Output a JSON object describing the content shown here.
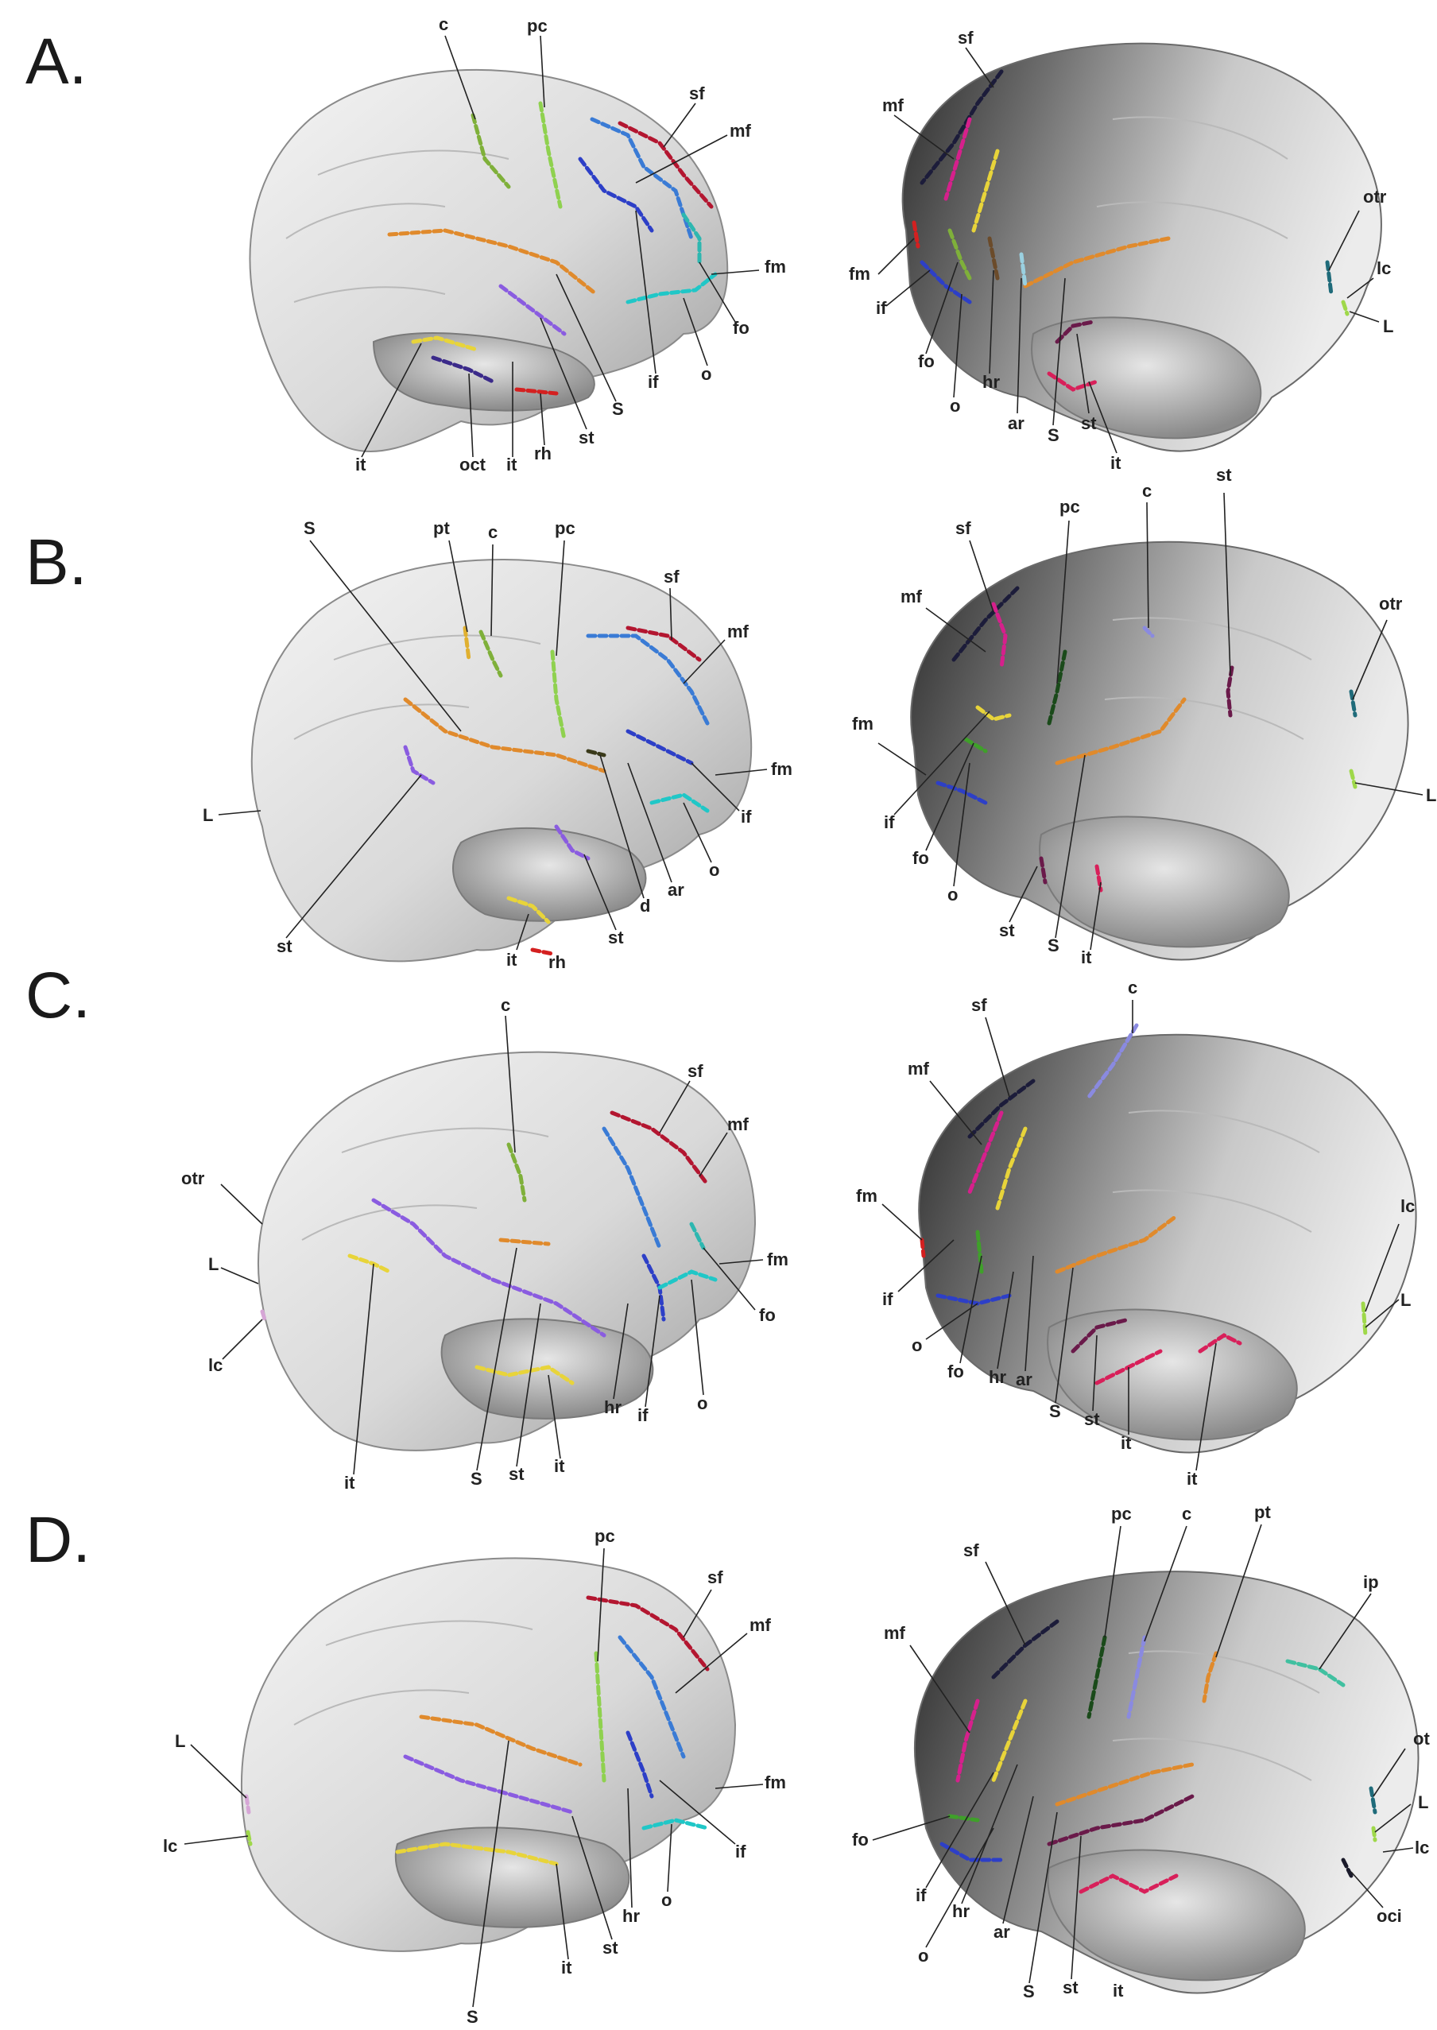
{
  "colors": {
    "background": "#ffffff",
    "c": "#7fb03a",
    "pc": "#8fd14f",
    "sf": "#b31630",
    "mf": "#3a7bd5",
    "if": "#2d3fc7",
    "fo": "#2db7b0",
    "fm": "#8b4a14",
    "o": "#20c7c7",
    "S": "#e08a2c",
    "st": "#8a5ce0",
    "it": "#e8d43a",
    "rh": "#d42020",
    "oct": "#3b2a8a",
    "otr": "#1f6b7a",
    "lc": "#d6a6d6",
    "L": "#9fd84a",
    "hr": "#6b4b2a",
    "ar": "#9ad0e0",
    "pt": "#e0b030",
    "d": "#3a3a1a",
    "ip": "#40c0a0",
    "oci": "#1a1a2a",
    "mf_medial": "#d6208c",
    "sf_medial": "#1c1c3a",
    "st_medial": "#6a1a4a",
    "it_medial": "#d8205a"
  },
  "panels": [
    {
      "letter": "A.",
      "left": {
        "labels": {
          "c": "c",
          "pc": "pc",
          "sf": "sf",
          "mf": "mf",
          "fm": "fm",
          "fo": "fo",
          "o": "o",
          "if": "if",
          "S": "S",
          "st": "st",
          "rh": "rh",
          "it1": "it",
          "it2": "it",
          "oct": "oct"
        }
      },
      "right": {
        "labels": {
          "sf": "sf",
          "mf": "mf",
          "otr": "otr",
          "lc": "lc",
          "L": "L",
          "fm": "fm",
          "if": "if",
          "fo": "fo",
          "o": "o",
          "hr": "hr",
          "ar": "ar",
          "S": "S",
          "st": "st",
          "it": "it"
        }
      }
    },
    {
      "letter": "B.",
      "left": {
        "labels": {
          "S": "S",
          "pt": "pt",
          "c": "c",
          "pc": "pc",
          "sf": "sf",
          "mf": "mf",
          "fm": "fm",
          "if": "if",
          "o": "o",
          "ar": "ar",
          "d": "d",
          "st1": "st",
          "st2": "st",
          "L": "L",
          "it": "it",
          "rh": "rh"
        }
      },
      "right": {
        "labels": {
          "pc": "pc",
          "c": "c",
          "st_top": "st",
          "sf": "sf",
          "mf": "mf",
          "otr": "otr",
          "fm": "fm",
          "if": "if",
          "fo": "fo",
          "o": "o",
          "L": "L",
          "st": "st",
          "S": "S",
          "it": "it"
        }
      }
    },
    {
      "letter": "C.",
      "left": {
        "labels": {
          "c": "c",
          "sf": "sf",
          "mf": "mf",
          "otr": "otr",
          "L": "L",
          "lc": "lc",
          "fm": "fm",
          "fo": "fo",
          "o": "o",
          "if": "if",
          "hr": "hr",
          "it1": "it",
          "it2": "it",
          "S": "S",
          "st": "st"
        }
      },
      "right": {
        "labels": {
          "c": "c",
          "sf": "sf",
          "mf": "mf",
          "fm": "fm",
          "if": "if",
          "o": "o",
          "fo": "fo",
          "hr": "hr",
          "ar": "ar",
          "S": "S",
          "st": "st",
          "it1": "it",
          "it2": "it",
          "lc": "lc",
          "L": "L"
        }
      }
    },
    {
      "letter": "D.",
      "left": {
        "labels": {
          "pc": "pc",
          "sf": "sf",
          "mf": "mf",
          "fm": "fm",
          "if": "if",
          "o": "o",
          "hr": "hr",
          "st": "st",
          "it": "it",
          "S": "S",
          "L": "L",
          "lc": "lc"
        }
      },
      "right": {
        "labels": {
          "pc": "pc",
          "c": "c",
          "pt": "pt",
          "ip": "ip",
          "sf": "sf",
          "mf": "mf",
          "fo": "fo",
          "if": "if",
          "hr": "hr",
          "o": "o",
          "ar": "ar",
          "S": "S",
          "st": "st",
          "it": "it",
          "ot": "ot",
          "L": "L",
          "lc": "lc",
          "oci": "oci"
        }
      }
    }
  ]
}
